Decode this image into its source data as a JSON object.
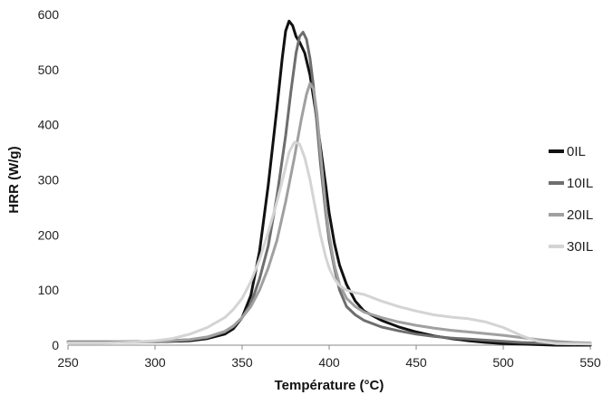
{
  "chart_data": {
    "type": "line",
    "xlabel": "Température (°C)",
    "ylabel": "HRR (W/g)",
    "xlim": [
      250,
      550
    ],
    "ylim": [
      0,
      600
    ],
    "xticks": [
      250,
      300,
      350,
      400,
      450,
      500,
      550
    ],
    "yticks": [
      0,
      100,
      200,
      300,
      400,
      500,
      600
    ],
    "grid": false,
    "legend_position": "right",
    "series": [
      {
        "name": "0IL",
        "color": "#111111",
        "points": [
          [
            250,
            6
          ],
          [
            280,
            6
          ],
          [
            300,
            6
          ],
          [
            320,
            8
          ],
          [
            330,
            12
          ],
          [
            340,
            20
          ],
          [
            345,
            30
          ],
          [
            350,
            50
          ],
          [
            355,
            90
          ],
          [
            360,
            170
          ],
          [
            365,
            290
          ],
          [
            370,
            430
          ],
          [
            373,
            520
          ],
          [
            375,
            570
          ],
          [
            377,
            588
          ],
          [
            379,
            580
          ],
          [
            381,
            560
          ],
          [
            383,
            550
          ],
          [
            386,
            530
          ],
          [
            389,
            490
          ],
          [
            392,
            430
          ],
          [
            395,
            360
          ],
          [
            398,
            290
          ],
          [
            400,
            240
          ],
          [
            403,
            185
          ],
          [
            406,
            145
          ],
          [
            410,
            110
          ],
          [
            415,
            80
          ],
          [
            420,
            62
          ],
          [
            430,
            45
          ],
          [
            440,
            33
          ],
          [
            450,
            24
          ],
          [
            460,
            17
          ],
          [
            470,
            12
          ],
          [
            480,
            8
          ],
          [
            490,
            5
          ],
          [
            500,
            3
          ],
          [
            510,
            2
          ],
          [
            520,
            1
          ],
          [
            530,
            0
          ],
          [
            550,
            0
          ]
        ]
      },
      {
        "name": "10IL",
        "color": "#6e6e6e",
        "points": [
          [
            250,
            6
          ],
          [
            280,
            6
          ],
          [
            300,
            7
          ],
          [
            320,
            10
          ],
          [
            330,
            14
          ],
          [
            340,
            24
          ],
          [
            345,
            34
          ],
          [
            350,
            50
          ],
          [
            355,
            75
          ],
          [
            360,
            120
          ],
          [
            365,
            180
          ],
          [
            370,
            270
          ],
          [
            375,
            380
          ],
          [
            378,
            460
          ],
          [
            381,
            530
          ],
          [
            383,
            560
          ],
          [
            385,
            568
          ],
          [
            387,
            555
          ],
          [
            389,
            520
          ],
          [
            391,
            470
          ],
          [
            393,
            400
          ],
          [
            395,
            330
          ],
          [
            398,
            240
          ],
          [
            400,
            190
          ],
          [
            403,
            140
          ],
          [
            406,
            100
          ],
          [
            410,
            70
          ],
          [
            415,
            55
          ],
          [
            420,
            45
          ],
          [
            430,
            33
          ],
          [
            440,
            26
          ],
          [
            450,
            20
          ],
          [
            460,
            16
          ],
          [
            470,
            13
          ],
          [
            480,
            11
          ],
          [
            490,
            9
          ],
          [
            500,
            7
          ],
          [
            510,
            5
          ],
          [
            520,
            4
          ],
          [
            550,
            3
          ]
        ]
      },
      {
        "name": "20IL",
        "color": "#a0a0a0",
        "points": [
          [
            250,
            5
          ],
          [
            280,
            5
          ],
          [
            300,
            6
          ],
          [
            320,
            10
          ],
          [
            330,
            15
          ],
          [
            340,
            25
          ],
          [
            345,
            35
          ],
          [
            350,
            50
          ],
          [
            355,
            70
          ],
          [
            360,
            100
          ],
          [
            365,
            140
          ],
          [
            370,
            190
          ],
          [
            375,
            260
          ],
          [
            380,
            340
          ],
          [
            384,
            410
          ],
          [
            387,
            455
          ],
          [
            389,
            475
          ],
          [
            391,
            465
          ],
          [
            393,
            420
          ],
          [
            395,
            350
          ],
          [
            398,
            250
          ],
          [
            400,
            200
          ],
          [
            403,
            145
          ],
          [
            406,
            110
          ],
          [
            410,
            85
          ],
          [
            415,
            70
          ],
          [
            420,
            60
          ],
          [
            430,
            50
          ],
          [
            440,
            42
          ],
          [
            450,
            36
          ],
          [
            460,
            31
          ],
          [
            470,
            27
          ],
          [
            480,
            24
          ],
          [
            490,
            21
          ],
          [
            500,
            18
          ],
          [
            510,
            14
          ],
          [
            520,
            10
          ],
          [
            530,
            7
          ],
          [
            540,
            5
          ],
          [
            550,
            4
          ]
        ]
      },
      {
        "name": "30IL",
        "color": "#d4d4d4",
        "points": [
          [
            250,
            4
          ],
          [
            270,
            4
          ],
          [
            290,
            6
          ],
          [
            300,
            8
          ],
          [
            310,
            12
          ],
          [
            320,
            20
          ],
          [
            330,
            32
          ],
          [
            340,
            50
          ],
          [
            345,
            65
          ],
          [
            350,
            85
          ],
          [
            355,
            115
          ],
          [
            360,
            155
          ],
          [
            365,
            205
          ],
          [
            370,
            260
          ],
          [
            374,
            310
          ],
          [
            377,
            350
          ],
          [
            380,
            368
          ],
          [
            383,
            365
          ],
          [
            386,
            340
          ],
          [
            389,
            300
          ],
          [
            392,
            250
          ],
          [
            395,
            200
          ],
          [
            398,
            160
          ],
          [
            400,
            140
          ],
          [
            403,
            120
          ],
          [
            406,
            108
          ],
          [
            410,
            100
          ],
          [
            415,
            95
          ],
          [
            420,
            92
          ],
          [
            430,
            80
          ],
          [
            440,
            70
          ],
          [
            450,
            62
          ],
          [
            460,
            55
          ],
          [
            470,
            51
          ],
          [
            480,
            48
          ],
          [
            490,
            42
          ],
          [
            500,
            32
          ],
          [
            505,
            25
          ],
          [
            510,
            18
          ],
          [
            515,
            12
          ],
          [
            520,
            7
          ],
          [
            530,
            3
          ],
          [
            550,
            2
          ]
        ]
      }
    ]
  }
}
